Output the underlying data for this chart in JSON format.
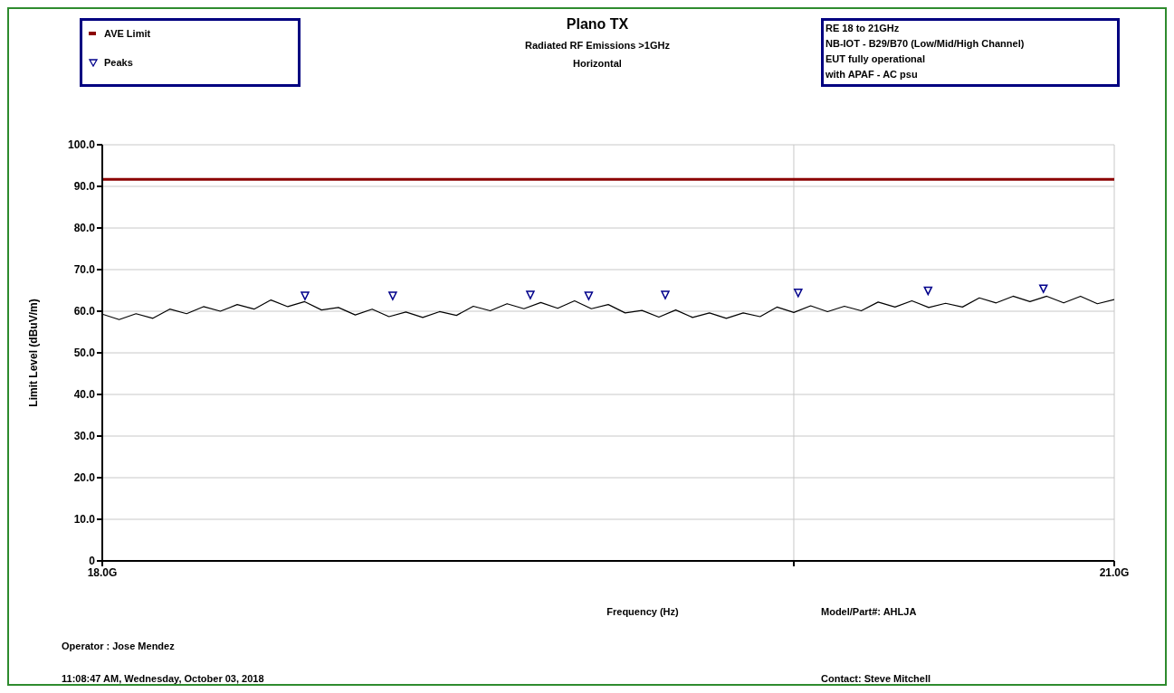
{
  "chart_data": {
    "type": "line",
    "title": "Plano TX",
    "subtitle": "Radiated RF Emissions >1GHz\nHorizontal",
    "xlabel": "Frequency (Hz)",
    "ylabel": "Limit Level (dBuV/m)",
    "xlim": [
      18,
      21
    ],
    "xticks": [
      {
        "value": 18,
        "label": "18.0G"
      },
      {
        "value": 20.05,
        "label": null
      },
      {
        "value": 21,
        "label": "21.0G"
      }
    ],
    "ylim": [
      0,
      100
    ],
    "yticks": [
      {
        "value": 0,
        "label": "0"
      },
      {
        "value": 10,
        "label": "10.0"
      },
      {
        "value": 20,
        "label": "20.0"
      },
      {
        "value": 30,
        "label": "30.0"
      },
      {
        "value": 40,
        "label": "40.0"
      },
      {
        "value": 50,
        "label": "50.0"
      },
      {
        "value": 60,
        "label": "60.0"
      },
      {
        "value": 70,
        "label": "70.0"
      },
      {
        "value": 80,
        "label": "80.0"
      },
      {
        "value": 90,
        "label": "90.0"
      },
      {
        "value": 100,
        "label": "100.0"
      }
    ],
    "grid": true,
    "legend": "top left",
    "marker": "none",
    "line_style": "solid",
    "series": [
      {
        "name": "AVE Limit",
        "color": "#8b0000",
        "x": [
          18,
          21
        ],
        "values": [
          91.7,
          91.7
        ]
      },
      {
        "name": "Peaks",
        "type": "scatter",
        "marker": "triangle",
        "color": "#00008b",
        "x": [
          18.601,
          18.861,
          19.269,
          19.442,
          19.669,
          20.063,
          20.448,
          20.79
        ],
        "values": [
          63.7,
          63.7,
          63.9,
          63.7,
          63.9,
          64.4,
          64.9,
          65.4
        ]
      },
      {
        "type": "line",
        "color": "#000000",
        "x": [
          18,
          18.05,
          18.1,
          18.15,
          18.2,
          18.25,
          18.3,
          18.35,
          18.4,
          18.45,
          18.5,
          18.55,
          18.6,
          18.65,
          18.7,
          18.75,
          18.8,
          18.85,
          18.9,
          18.95,
          19,
          19.05,
          19.1,
          19.15,
          19.2,
          19.25,
          19.3,
          19.35,
          19.4,
          19.45,
          19.5,
          19.55,
          19.6,
          19.65,
          19.7,
          19.75,
          19.8,
          19.85,
          19.9,
          19.95,
          20,
          20.05,
          20.1,
          20.15,
          20.2,
          20.25,
          20.3,
          20.35,
          20.4,
          20.45,
          20.5,
          20.55,
          20.6,
          20.65,
          20.7,
          20.75,
          20.8,
          20.85,
          20.9,
          20.95,
          21
        ],
        "values": [
          59.3,
          58,
          59.4,
          58.3,
          60.5,
          59.4,
          61.1,
          60,
          61.6,
          60.5,
          62.7,
          61.1,
          62.3,
          60.3,
          60.9,
          59.1,
          60.5,
          58.7,
          59.8,
          58.5,
          59.9,
          59,
          61.2,
          60.1,
          61.8,
          60.6,
          62.1,
          60.7,
          62.5,
          60.6,
          61.6,
          59.6,
          60.2,
          58.6,
          60.3,
          58.5,
          59.6,
          58.3,
          59.6,
          58.7,
          61,
          59.7,
          61.3,
          59.9,
          61.2,
          60.1,
          62.2,
          61,
          62.5,
          60.9,
          61.9,
          61,
          63.2,
          62,
          63.6,
          62.3,
          63.6,
          62,
          63.6,
          61.8,
          62.8
        ]
      }
    ],
    "annotations": [
      "RE 18 to 21GHz",
      "NB-IOT - B29/B70 (Low/Mid/High Channel)",
      "EUT fully operational",
      "with APAF - AC psu",
      "Model/Part#: AHLJA",
      "Operator : Jose Mendez",
      "11:08:47 AM, Wednesday, October 03, 2018",
      "Contact: Steve Mitchell"
    ]
  }
}
